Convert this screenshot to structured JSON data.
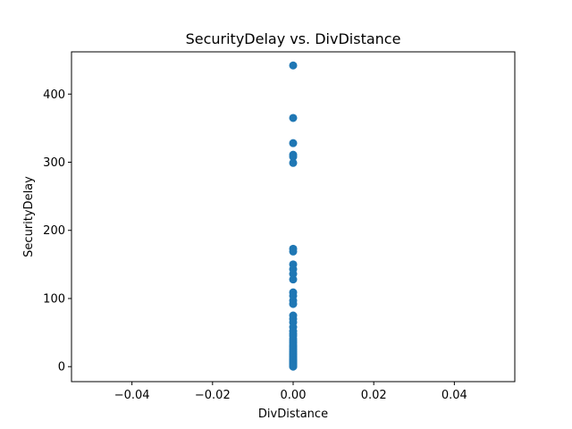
{
  "chart_data": {
    "type": "scatter",
    "title": "SecurityDelay vs. DivDistance",
    "xlabel": "DivDistance",
    "ylabel": "SecurityDelay",
    "xlim": [
      -0.055,
      0.055
    ],
    "ylim": [
      -22,
      462
    ],
    "grid": false,
    "marker_color": "#1f77b4",
    "xticks": [
      {
        "value": -0.04,
        "label": "−0.04"
      },
      {
        "value": -0.02,
        "label": "−0.02"
      },
      {
        "value": 0.0,
        "label": "0.00"
      },
      {
        "value": 0.02,
        "label": "0.02"
      },
      {
        "value": 0.04,
        "label": "0.04"
      }
    ],
    "yticks": [
      {
        "value": 0,
        "label": "0"
      },
      {
        "value": 100,
        "label": "100"
      },
      {
        "value": 200,
        "label": "200"
      },
      {
        "value": 300,
        "label": "300"
      },
      {
        "value": 400,
        "label": "400"
      }
    ],
    "series": [
      {
        "x": [
          0,
          0,
          0,
          0,
          0,
          0,
          0,
          0,
          0,
          0,
          0,
          0,
          0,
          0,
          0,
          0,
          0,
          0,
          0,
          0,
          0,
          0,
          0,
          0,
          0,
          0,
          0,
          0,
          0,
          0,
          0,
          0,
          0,
          0,
          0,
          0,
          0,
          0,
          0,
          0,
          0,
          0,
          0,
          0,
          0,
          0,
          0,
          0,
          0,
          0
        ],
        "y": [
          442,
          365,
          328,
          311,
          308,
          299,
          173,
          169,
          150,
          143,
          136,
          128,
          109,
          104,
          97,
          92,
          75,
          70,
          65,
          58,
          52,
          48,
          45,
          41,
          38,
          35,
          32,
          30,
          28,
          26,
          24,
          22,
          20,
          18,
          16,
          14,
          12,
          10,
          9,
          8,
          7,
          6,
          5,
          4,
          3,
          2,
          1.5,
          1,
          0.5,
          0
        ]
      }
    ]
  }
}
